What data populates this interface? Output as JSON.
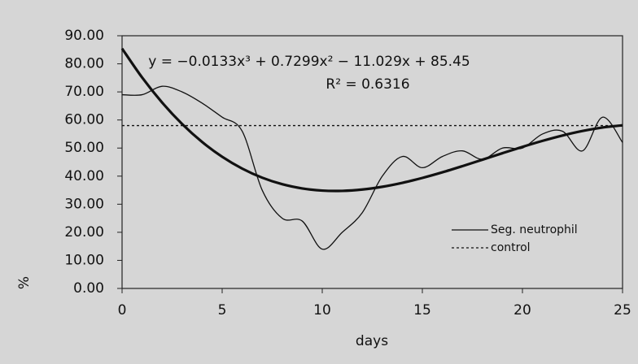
{
  "chart_data": {
    "type": "line",
    "x_label": "days",
    "y_label": "%",
    "annotations": [
      "y = −0.0133x³ + 0.7299x² − 11.029x + 85.45",
      "R² = 0.6316"
    ],
    "x": [
      0,
      1,
      2,
      3,
      4,
      5,
      6,
      7,
      8,
      9,
      10,
      11,
      12,
      13,
      14,
      15,
      16,
      17,
      18,
      19,
      20,
      21,
      22,
      23,
      24,
      25
    ],
    "series": [
      {
        "name": "Seg. neutrophil",
        "color": "#111111",
        "style": "solid",
        "width": 1.3,
        "values": [
          69,
          69,
          72,
          70,
          66,
          61,
          56,
          35,
          25,
          24,
          14,
          20,
          27,
          40,
          47,
          43,
          47,
          49,
          46,
          50,
          50,
          55,
          56,
          49,
          61,
          52
        ]
      },
      {
        "name": "control",
        "color": "#111111",
        "style": "dotted",
        "width": 1.3,
        "values": [
          58,
          58,
          58,
          58,
          58,
          58,
          58,
          58,
          58,
          58,
          58,
          58,
          58,
          58,
          58,
          58,
          58,
          58,
          58,
          58,
          58,
          58,
          58,
          58,
          58,
          58
        ]
      },
      {
        "color": "#111111",
        "style": "solid",
        "width": 3.2,
        "values": [
          85.45,
          75.14,
          66.21,
          58.57,
          52.16,
          46.89,
          42.68,
          39.45,
          37.12,
          35.62,
          34.85,
          34.75,
          35.23,
          36.21,
          37.61,
          39.36,
          41.36,
          43.56,
          45.85,
          48.17,
          50.43,
          52.56,
          54.47,
          56.08,
          57.32,
          58.1
        ]
      }
    ],
    "xlim": [
      0,
      25
    ],
    "xticks": [
      0,
      5,
      10,
      15,
      20,
      25
    ],
    "ylim": [
      0,
      90
    ],
    "yticks": [
      {
        "value": 0,
        "label": "0.00"
      },
      {
        "value": 10,
        "label": "10.00"
      },
      {
        "value": 20,
        "label": "20.00"
      },
      {
        "value": 30,
        "label": "30.00"
      },
      {
        "value": 40,
        "label": "40.00"
      },
      {
        "value": 50,
        "label": "50.00"
      },
      {
        "value": 60,
        "label": "60.00"
      },
      {
        "value": 70,
        "label": "70.00"
      },
      {
        "value": 80,
        "label": "80.00"
      },
      {
        "value": 90,
        "label": "90.00"
      }
    ],
    "legend": "lower right"
  }
}
